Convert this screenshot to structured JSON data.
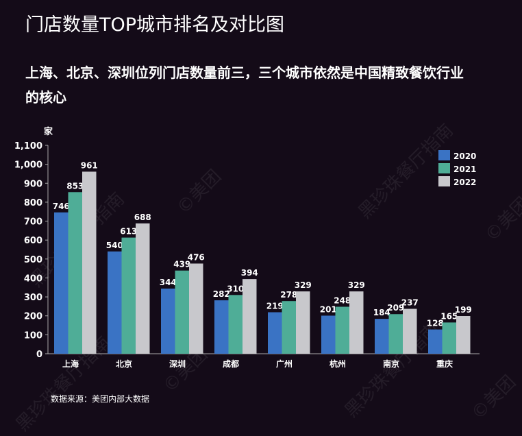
{
  "title": "门店数量TOP城市排名及对比图",
  "subtitle": "上海、北京、深圳位列门店数量前三，三个城市依然是中国精致餐饮行业的核心",
  "source": "数据来源：美团内部大数据",
  "watermark": [
    "黑珍珠餐厅指南",
    "©美团"
  ],
  "chart_data": {
    "type": "bar",
    "title": "门店数量TOP城市排名及对比图",
    "ylabel": "家",
    "xlabel": "",
    "ylim": [
      0,
      1100
    ],
    "yticks": [
      0,
      100,
      200,
      300,
      400,
      500,
      600,
      700,
      800,
      900,
      1000,
      1100
    ],
    "ytick_labels": [
      "0",
      "100",
      "200",
      "300",
      "400",
      "500",
      "600",
      "700",
      "800",
      "900",
      "1,000",
      "1,100"
    ],
    "grid": false,
    "legend": "top-right",
    "categories": [
      "上海",
      "北京",
      "深圳",
      "成都",
      "广州",
      "杭州",
      "南京",
      "重庆"
    ],
    "series": [
      {
        "name": "2020",
        "color": "#3a73c4",
        "values": [
          746,
          540,
          344,
          282,
          219,
          201,
          184,
          128
        ]
      },
      {
        "name": "2021",
        "color": "#4fad97",
        "values": [
          853,
          613,
          439,
          310,
          278,
          248,
          209,
          165
        ]
      },
      {
        "name": "2022",
        "color": "#c8c8cc",
        "values": [
          961,
          688,
          476,
          394,
          329,
          329,
          237,
          199
        ]
      }
    ]
  }
}
